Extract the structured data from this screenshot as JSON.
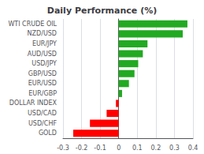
{
  "chart_data": {
    "type": "bar",
    "orientation": "horizontal",
    "title": "Daily Performance (%)",
    "categories": [
      "GOLD",
      "USD/CHF",
      "USD/CAD",
      "DOLLAR INDEX",
      "EUR/GBP",
      "EUR/USD",
      "GBP/USD",
      "USD/JPY",
      "AUD/USD",
      "EUR/JPY",
      "NZD/USD",
      "WTI CRUDE OIL"
    ],
    "values": [
      -0.245,
      -0.155,
      -0.065,
      -0.015,
      0.018,
      0.055,
      0.085,
      0.105,
      0.13,
      0.155,
      0.345,
      0.37
    ],
    "colors": [
      "#ff0000",
      "#ff0000",
      "#ff0000",
      "#ff0000",
      "#22aa22",
      "#22aa22",
      "#22aa22",
      "#22aa22",
      "#22aa22",
      "#22aa22",
      "#22aa22",
      "#22aa22"
    ],
    "xlim": [
      -0.3,
      0.4
    ],
    "xticks": [
      -0.3,
      -0.2,
      -0.1,
      0,
      0.1,
      0.2,
      0.3,
      0.4
    ],
    "grid": true
  }
}
